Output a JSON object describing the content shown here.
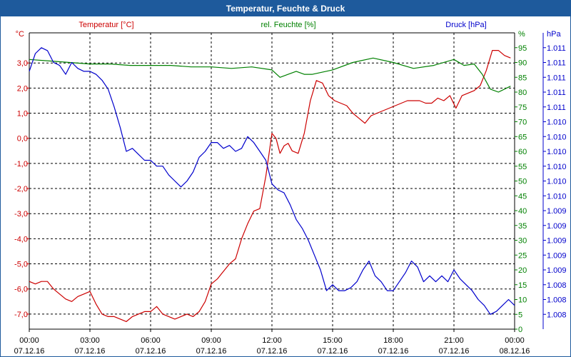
{
  "window": {
    "title": "Temperatur, Feuchte & Druck"
  },
  "chart_data": {
    "type": "line",
    "title": "Temperatur, Feuchte & Druck",
    "x_tick_labels": [
      {
        "time": "00:00",
        "date": "07.12.16"
      },
      {
        "time": "03:00",
        "date": "07.12.16"
      },
      {
        "time": "06:00",
        "date": "07.12.16"
      },
      {
        "time": "09:00",
        "date": "07.12.16"
      },
      {
        "time": "12:00",
        "date": "07.12.16"
      },
      {
        "time": "15:00",
        "date": "07.12.16"
      },
      {
        "time": "18:00",
        "date": "07.12.16"
      },
      {
        "time": "21:00",
        "date": "07.12.16"
      },
      {
        "time": "00:00",
        "date": "08.12.16"
      }
    ],
    "xlim_hours": [
      0,
      24
    ],
    "axes": {
      "temperature": {
        "unit": "°C",
        "series_label": "Temperatur [°C]",
        "color": "#cc0000",
        "ylim": [
          -7.6,
          4.2
        ],
        "tick_values": [
          3.0,
          2.0,
          1.0,
          0.0,
          -1.0,
          -2.0,
          -3.0,
          -4.0,
          -5.0,
          -6.0,
          -7.0
        ],
        "tick_labels": [
          "3,0",
          "2,0",
          "1,0",
          "0,0",
          "-1,0",
          "-2,0",
          "-3,0",
          "-4,0",
          "-5,0",
          "-6,0",
          "-7,0"
        ]
      },
      "humidity": {
        "unit": "%",
        "series_label": "rel. Feuchte [%]",
        "color": "#008000",
        "ylim": [
          0,
          100
        ],
        "tick_values": [
          95,
          90,
          85,
          80,
          75,
          70,
          65,
          60,
          55,
          50,
          45,
          40,
          35,
          30,
          25,
          20,
          15,
          10,
          5,
          0
        ],
        "tick_labels": [
          "95",
          "90",
          "85",
          "80",
          "75",
          "70",
          "65",
          "60",
          "55",
          "50",
          "45",
          "40",
          "35",
          "30",
          "25",
          "20",
          "15",
          "10",
          "5",
          "0"
        ]
      },
      "pressure": {
        "unit": "hPa",
        "series_label": "Druck [hPa]",
        "color": "#0000cc",
        "ylim": [
          0,
          100
        ],
        "tick_values": [
          95,
          90,
          85,
          80,
          75,
          70,
          65,
          60,
          55,
          50,
          45,
          40,
          35,
          30,
          25,
          20,
          15,
          10,
          5
        ],
        "tick_labels": [
          "1.011",
          "1.011",
          "1.011",
          "1.011",
          "1.011",
          "1.010",
          "1.010",
          "1.010",
          "1.010",
          "1.010",
          "1.010",
          "1.009",
          "1.009",
          "1.009",
          "1.009",
          "1.009",
          "1.008",
          "1.008",
          "1.008"
        ]
      }
    },
    "series": [
      {
        "name": "Temperatur [°C]",
        "axis": "temperature",
        "color": "#cc0000",
        "points": [
          [
            0,
            -5.7
          ],
          [
            0.3,
            -5.8
          ],
          [
            0.6,
            -5.7
          ],
          [
            0.9,
            -5.7
          ],
          [
            1.2,
            -6.0
          ],
          [
            1.5,
            -6.2
          ],
          [
            1.8,
            -6.4
          ],
          [
            2.1,
            -6.5
          ],
          [
            2.4,
            -6.3
          ],
          [
            2.7,
            -6.2
          ],
          [
            3.0,
            -6.1
          ],
          [
            3.3,
            -6.6
          ],
          [
            3.6,
            -7.0
          ],
          [
            3.9,
            -7.1
          ],
          [
            4.2,
            -7.1
          ],
          [
            4.5,
            -7.2
          ],
          [
            4.8,
            -7.3
          ],
          [
            5.1,
            -7.1
          ],
          [
            5.4,
            -7.0
          ],
          [
            5.7,
            -6.9
          ],
          [
            6.0,
            -6.9
          ],
          [
            6.3,
            -6.7
          ],
          [
            6.6,
            -7.0
          ],
          [
            6.9,
            -7.1
          ],
          [
            7.2,
            -7.2
          ],
          [
            7.5,
            -7.1
          ],
          [
            7.8,
            -7.0
          ],
          [
            8.1,
            -7.1
          ],
          [
            8.4,
            -6.9
          ],
          [
            8.7,
            -6.5
          ],
          [
            9.0,
            -5.8
          ],
          [
            9.3,
            -5.6
          ],
          [
            9.6,
            -5.3
          ],
          [
            9.9,
            -5.0
          ],
          [
            10.2,
            -4.8
          ],
          [
            10.5,
            -4.0
          ],
          [
            10.8,
            -3.4
          ],
          [
            11.1,
            -2.9
          ],
          [
            11.4,
            -2.8
          ],
          [
            11.7,
            -1.5
          ],
          [
            12.0,
            0.2
          ],
          [
            12.2,
            0.0
          ],
          [
            12.4,
            -0.6
          ],
          [
            12.6,
            -0.3
          ],
          [
            12.8,
            -0.2
          ],
          [
            13.0,
            -0.5
          ],
          [
            13.3,
            -0.6
          ],
          [
            13.6,
            0.2
          ],
          [
            13.9,
            1.5
          ],
          [
            14.2,
            2.3
          ],
          [
            14.5,
            2.2
          ],
          [
            14.8,
            1.7
          ],
          [
            15.1,
            1.5
          ],
          [
            15.4,
            1.4
          ],
          [
            15.7,
            1.3
          ],
          [
            16.0,
            1.0
          ],
          [
            16.3,
            0.8
          ],
          [
            16.6,
            0.6
          ],
          [
            16.9,
            0.9
          ],
          [
            17.2,
            1.0
          ],
          [
            17.5,
            1.1
          ],
          [
            17.8,
            1.2
          ],
          [
            18.1,
            1.3
          ],
          [
            18.4,
            1.4
          ],
          [
            18.7,
            1.5
          ],
          [
            19.0,
            1.5
          ],
          [
            19.3,
            1.5
          ],
          [
            19.6,
            1.4
          ],
          [
            19.9,
            1.4
          ],
          [
            20.2,
            1.6
          ],
          [
            20.5,
            1.5
          ],
          [
            20.8,
            1.7
          ],
          [
            21.1,
            1.2
          ],
          [
            21.4,
            1.7
          ],
          [
            21.7,
            1.8
          ],
          [
            22.0,
            1.9
          ],
          [
            22.3,
            2.1
          ],
          [
            22.6,
            2.7
          ],
          [
            22.9,
            3.5
          ],
          [
            23.2,
            3.5
          ],
          [
            23.5,
            3.3
          ],
          [
            23.8,
            3.2
          ]
        ]
      },
      {
        "name": "rel. Feuchte [%]",
        "axis": "humidity",
        "color": "#008000",
        "points": [
          [
            0,
            91
          ],
          [
            1,
            90.5
          ],
          [
            2,
            90
          ],
          [
            3,
            89.5
          ],
          [
            4,
            89.5
          ],
          [
            5,
            89
          ],
          [
            6,
            89
          ],
          [
            7,
            89
          ],
          [
            8,
            88.5
          ],
          [
            9,
            88.5
          ],
          [
            10,
            88
          ],
          [
            11,
            88.5
          ],
          [
            12,
            87.5
          ],
          [
            12.4,
            85
          ],
          [
            12.8,
            86
          ],
          [
            13.2,
            87
          ],
          [
            13.6,
            86
          ],
          [
            14,
            86
          ],
          [
            15,
            87.5
          ],
          [
            16,
            90
          ],
          [
            17,
            91.5
          ],
          [
            18,
            90
          ],
          [
            19,
            88
          ],
          [
            20,
            89
          ],
          [
            21,
            91
          ],
          [
            21.5,
            89
          ],
          [
            22,
            89.5
          ],
          [
            22.4,
            86
          ],
          [
            22.8,
            81
          ],
          [
            23.2,
            80
          ],
          [
            23.8,
            82
          ]
        ]
      },
      {
        "name": "Druck [hPa]",
        "axis": "pressure",
        "color": "#0000cc",
        "points": [
          [
            0,
            87
          ],
          [
            0.3,
            93
          ],
          [
            0.6,
            95
          ],
          [
            0.9,
            94
          ],
          [
            1.2,
            90
          ],
          [
            1.5,
            89
          ],
          [
            1.8,
            86
          ],
          [
            2.1,
            90
          ],
          [
            2.4,
            88
          ],
          [
            2.7,
            87
          ],
          [
            3.0,
            87
          ],
          [
            3.3,
            86
          ],
          [
            3.6,
            84
          ],
          [
            3.9,
            81
          ],
          [
            4.2,
            75
          ],
          [
            4.5,
            68
          ],
          [
            4.8,
            60
          ],
          [
            5.1,
            61
          ],
          [
            5.4,
            59
          ],
          [
            5.7,
            57
          ],
          [
            6.0,
            57
          ],
          [
            6.3,
            55
          ],
          [
            6.6,
            55
          ],
          [
            6.9,
            52
          ],
          [
            7.2,
            50
          ],
          [
            7.5,
            48
          ],
          [
            7.8,
            50
          ],
          [
            8.1,
            53
          ],
          [
            8.4,
            58
          ],
          [
            8.7,
            60
          ],
          [
            9.0,
            63
          ],
          [
            9.3,
            63
          ],
          [
            9.6,
            61
          ],
          [
            9.9,
            62
          ],
          [
            10.2,
            60
          ],
          [
            10.5,
            61
          ],
          [
            10.8,
            65
          ],
          [
            11.1,
            63
          ],
          [
            11.4,
            60
          ],
          [
            11.7,
            57
          ],
          [
            12.0,
            49
          ],
          [
            12.3,
            47
          ],
          [
            12.6,
            46
          ],
          [
            12.9,
            42
          ],
          [
            13.2,
            37
          ],
          [
            13.5,
            34
          ],
          [
            13.8,
            30
          ],
          [
            14.1,
            25
          ],
          [
            14.4,
            20
          ],
          [
            14.7,
            13
          ],
          [
            15.0,
            15
          ],
          [
            15.3,
            13
          ],
          [
            15.6,
            13
          ],
          [
            15.9,
            14
          ],
          [
            16.2,
            16
          ],
          [
            16.5,
            20
          ],
          [
            16.8,
            23
          ],
          [
            17.1,
            18
          ],
          [
            17.4,
            16
          ],
          [
            17.7,
            13
          ],
          [
            18.0,
            13
          ],
          [
            18.3,
            16
          ],
          [
            18.6,
            19
          ],
          [
            18.9,
            23
          ],
          [
            19.2,
            21
          ],
          [
            19.5,
            16
          ],
          [
            19.8,
            18
          ],
          [
            20.1,
            16
          ],
          [
            20.4,
            18
          ],
          [
            20.7,
            16
          ],
          [
            21.0,
            20
          ],
          [
            21.3,
            17
          ],
          [
            21.6,
            15
          ],
          [
            21.9,
            13
          ],
          [
            22.2,
            10
          ],
          [
            22.5,
            8
          ],
          [
            22.8,
            5
          ],
          [
            23.1,
            6
          ],
          [
            23.4,
            8
          ],
          [
            23.7,
            10
          ],
          [
            24.0,
            8
          ]
        ]
      }
    ]
  }
}
